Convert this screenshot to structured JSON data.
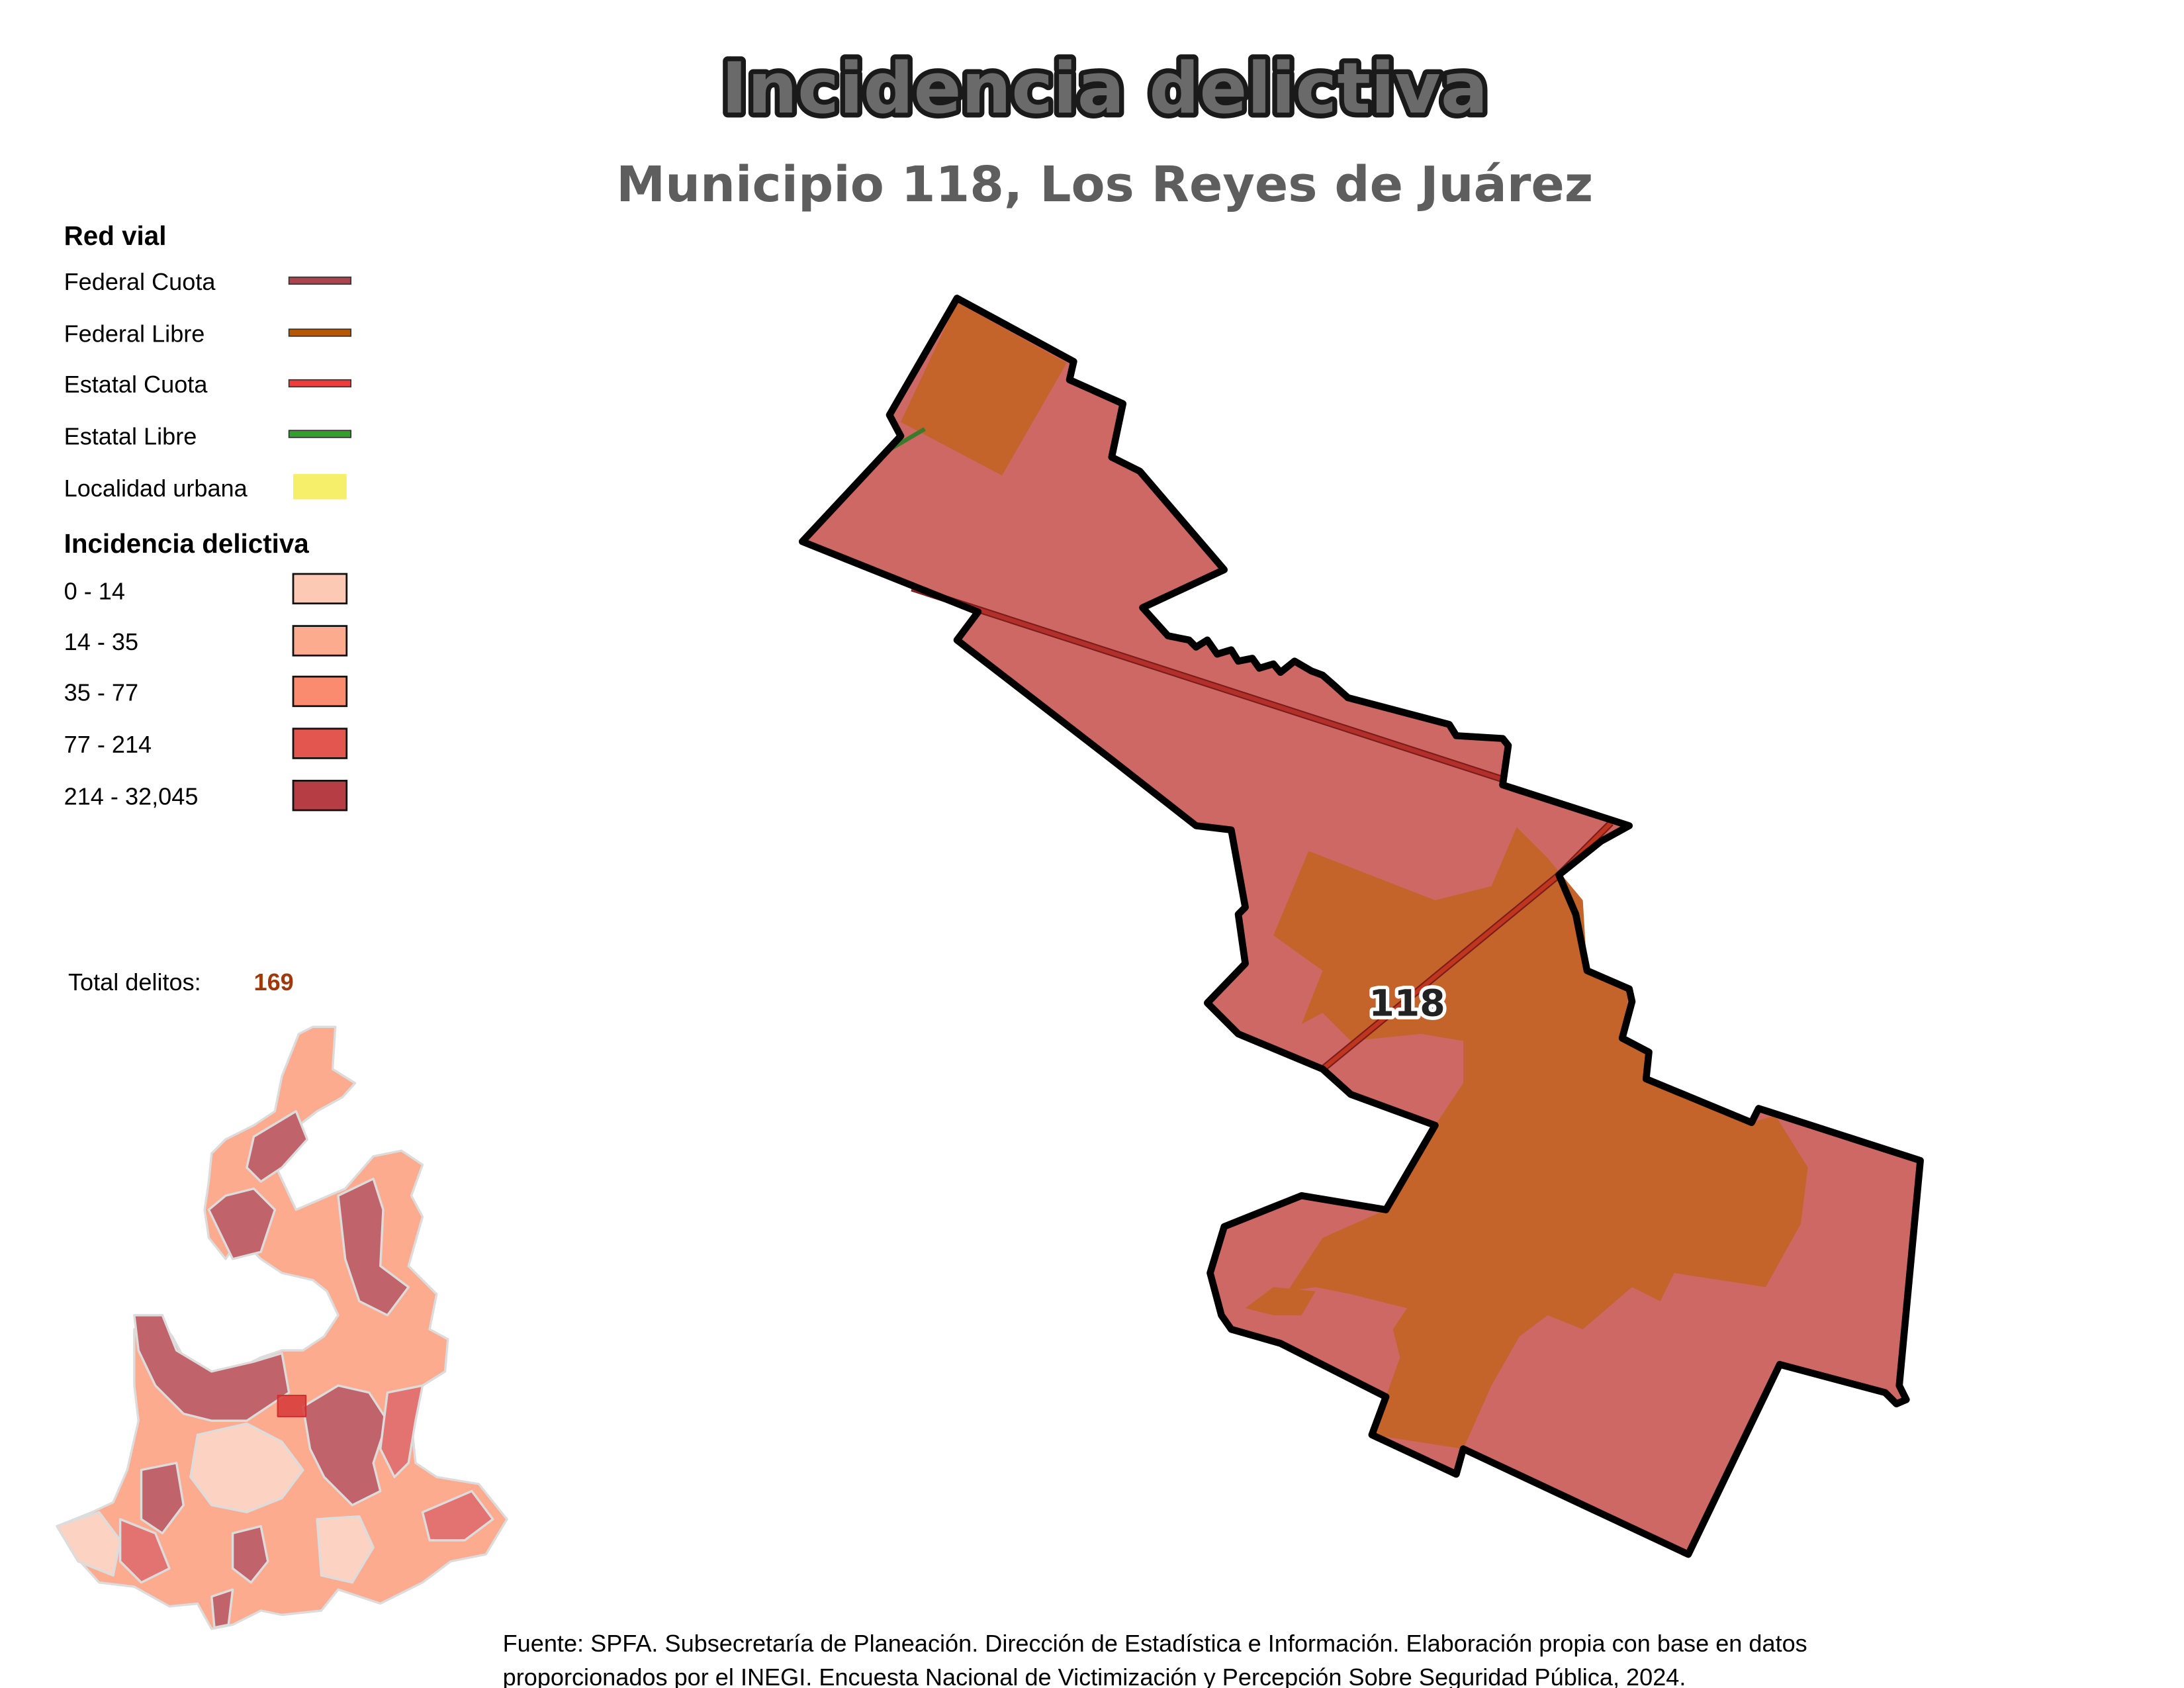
{
  "title": "Incidencia delictiva",
  "subtitle": "Municipio 118, Los Reyes de Juárez",
  "legend": {
    "road_heading": "Red vial",
    "roads": [
      {
        "label": "Federal Cuota",
        "color": "#a8454e"
      },
      {
        "label": "Federal Libre",
        "color": "#b35806"
      },
      {
        "label": "Estatal Cuota",
        "color": "#f03b3b"
      },
      {
        "label": "Estatal Libre",
        "color": "#33a02c"
      }
    ],
    "urban": {
      "label": "Localidad urbana",
      "color": "#f5ef6a"
    },
    "incidence_heading": "Incidencia delictiva",
    "classes": [
      {
        "label": "0 - 14",
        "color": "#fcc9b5"
      },
      {
        "label": "14 - 35",
        "color": "#fcab8f"
      },
      {
        "label": "35 - 77",
        "color": "#fb8b6e"
      },
      {
        "label": "77 - 214",
        "color": "#e3564f"
      },
      {
        "label": "214 - 32,045",
        "color": "#b73d45"
      }
    ]
  },
  "total": {
    "label": "Total delitos:",
    "value": "169",
    "value_color": "#a0380a"
  },
  "map": {
    "municipality_label": "118",
    "municipality_fill": "#cd6865",
    "urban_overlay_fill": "#c4632a"
  },
  "footer": {
    "line1": "Fuente: SPFA. Subsecretaría de Planeación. Dirección de Estadística e Información. Elaboración propia con base en datos",
    "line2": "proporcionados por el INEGI. Encuesta Nacional de Victimización y Percepción Sobre Seguridad Pública, 2024."
  }
}
